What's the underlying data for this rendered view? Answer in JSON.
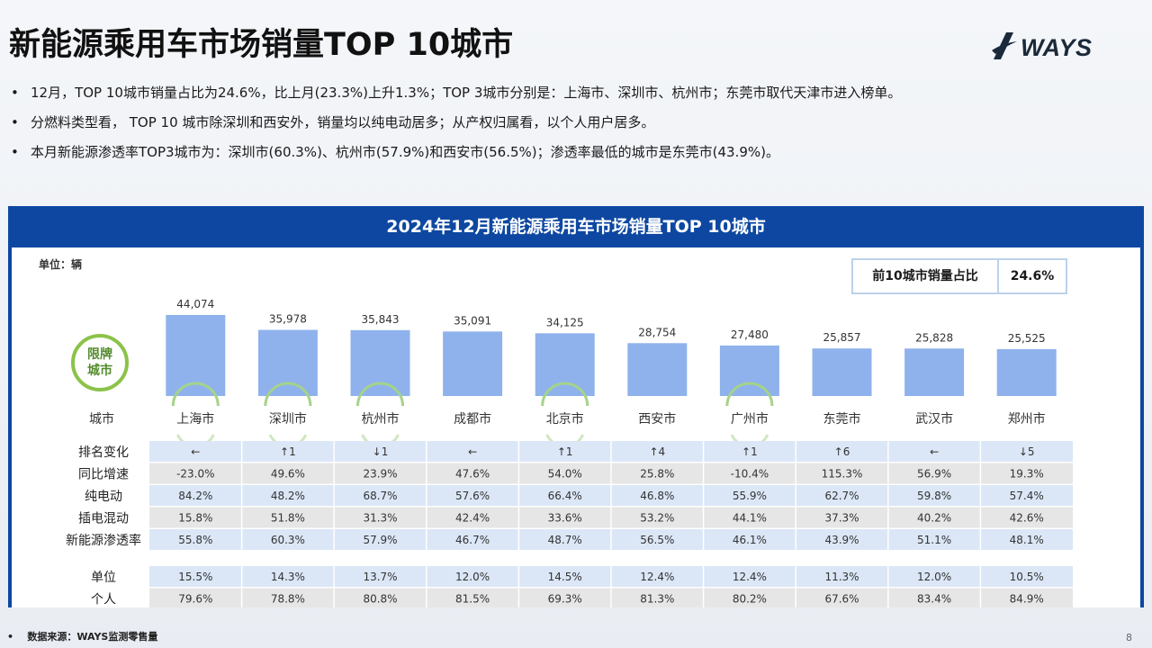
{
  "header": {
    "title": "新能源乘用车市场销量TOP 10城市",
    "logo_text": "WAYS"
  },
  "bullets": [
    "12月，TOP 10城市销量占比为24.6%，比上月(23.3%)上升1.3%；TOP 3城市分别是：上海市、深圳市、杭州市；东莞市取代天津市进入榜单。",
    "分燃料类型看， TOP 10 城市除深圳和西安外，销量均以纯电动居多；从产权归属看，以个人用户居多。",
    "本月新能源渗透率TOP3城市为：深圳市(60.3%)、杭州市(57.9%)和西安市(56.5%)；渗透率最低的城市是东莞市(43.9%)。"
  ],
  "panel": {
    "title": "2024年12月新能源乘用车市场销量TOP 10城市",
    "unit_label": "单位：辆",
    "kpi_label": "前10城市销量占比",
    "kpi_value": "24.6%",
    "badge_text": "限牌城市",
    "city_header": "城市"
  },
  "chart_data": {
    "type": "bar",
    "categories": [
      "上海市",
      "深圳市",
      "杭州市",
      "成都市",
      "北京市",
      "西安市",
      "广州市",
      "东莞市",
      "武汉市",
      "郑州市"
    ],
    "values": [
      44074,
      35978,
      35843,
      35091,
      34125,
      28754,
      27480,
      25857,
      25828,
      25525
    ],
    "value_labels": [
      "44,074",
      "35,978",
      "35,843",
      "35,091",
      "34,125",
      "28,754",
      "27,480",
      "25,857",
      "25,828",
      "25,525"
    ],
    "ylabel": "单位：辆",
    "bar_color": "#8fb2ec",
    "restricted_cities": [
      "上海市",
      "深圳市",
      "杭州市",
      "北京市",
      "广州市"
    ]
  },
  "table": {
    "rows": [
      {
        "label": "排名变化",
        "values": [
          "←",
          "↑1",
          "↓1",
          "←",
          "↑1",
          "↑4",
          "↑1",
          "↑6",
          "←",
          "↓5"
        ]
      },
      {
        "label": "同比增速",
        "values": [
          "-23.0%",
          "49.6%",
          "23.9%",
          "47.6%",
          "54.0%",
          "25.8%",
          "-10.4%",
          "115.3%",
          "56.9%",
          "19.3%"
        ]
      },
      {
        "label": "纯电动",
        "values": [
          "84.2%",
          "48.2%",
          "68.7%",
          "57.6%",
          "66.4%",
          "46.8%",
          "55.9%",
          "62.7%",
          "59.8%",
          "57.4%"
        ]
      },
      {
        "label": "插电混动",
        "values": [
          "15.8%",
          "51.8%",
          "31.3%",
          "42.4%",
          "33.6%",
          "53.2%",
          "44.1%",
          "37.3%",
          "40.2%",
          "42.6%"
        ]
      },
      {
        "label": "新能源渗透率",
        "values": [
          "55.8%",
          "60.3%",
          "57.9%",
          "46.7%",
          "48.7%",
          "56.5%",
          "46.1%",
          "43.9%",
          "51.1%",
          "48.1%"
        ]
      }
    ],
    "rows2": [
      {
        "label": "单位",
        "values": [
          "15.5%",
          "14.3%",
          "13.7%",
          "12.0%",
          "14.5%",
          "12.4%",
          "12.4%",
          "11.3%",
          "12.0%",
          "10.5%"
        ]
      },
      {
        "label": "个人",
        "values": [
          "79.6%",
          "78.8%",
          "80.8%",
          "81.5%",
          "69.3%",
          "81.3%",
          "80.2%",
          "67.6%",
          "83.4%",
          "84.9%"
        ]
      }
    ],
    "row_colors": {
      "blue": "#dbe7f7",
      "gray": "#e6e6e6"
    }
  },
  "footer": {
    "source": "数据来源：WAYS监测零售量",
    "page": "8"
  }
}
